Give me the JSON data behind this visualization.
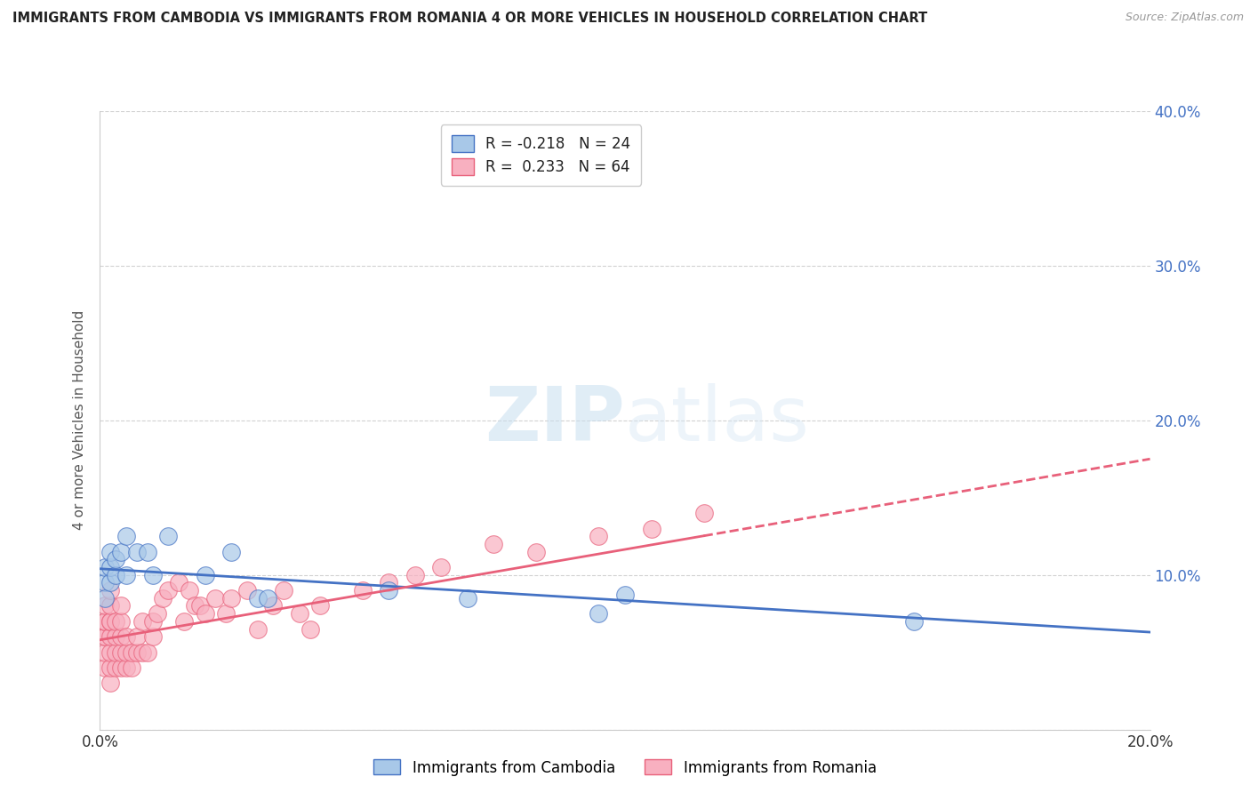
{
  "title": "IMMIGRANTS FROM CAMBODIA VS IMMIGRANTS FROM ROMANIA 4 OR MORE VEHICLES IN HOUSEHOLD CORRELATION CHART",
  "source": "Source: ZipAtlas.com",
  "ylabel": "4 or more Vehicles in Household",
  "xlim": [
    0.0,
    0.2
  ],
  "ylim": [
    0.0,
    0.4
  ],
  "cambodia_color": "#a8c8e8",
  "romania_color": "#f8b0c0",
  "cambodia_line_color": "#4472c4",
  "romania_line_color": "#e8607a",
  "cambodia_R": -0.218,
  "cambodia_N": 24,
  "romania_R": 0.233,
  "romania_N": 64,
  "watermark_zip": "ZIP",
  "watermark_atlas": "atlas",
  "background_color": "#ffffff",
  "grid_color": "#cccccc",
  "legend_label_cambodia": "Immigrants from Cambodia",
  "legend_label_romania": "Immigrants from Romania",
  "cambodia_x": [
    0.001,
    0.001,
    0.001,
    0.002,
    0.002,
    0.002,
    0.003,
    0.003,
    0.004,
    0.005,
    0.005,
    0.007,
    0.009,
    0.01,
    0.013,
    0.02,
    0.025,
    0.03,
    0.032,
    0.055,
    0.07,
    0.095,
    0.1,
    0.155
  ],
  "cambodia_y": [
    0.095,
    0.105,
    0.085,
    0.095,
    0.105,
    0.115,
    0.1,
    0.11,
    0.115,
    0.1,
    0.125,
    0.115,
    0.115,
    0.1,
    0.125,
    0.1,
    0.115,
    0.085,
    0.085,
    0.09,
    0.085,
    0.075,
    0.087,
    0.07
  ],
  "romania_x": [
    0.001,
    0.001,
    0.001,
    0.001,
    0.001,
    0.001,
    0.001,
    0.002,
    0.002,
    0.002,
    0.002,
    0.002,
    0.002,
    0.002,
    0.002,
    0.003,
    0.003,
    0.003,
    0.003,
    0.004,
    0.004,
    0.004,
    0.004,
    0.004,
    0.005,
    0.005,
    0.005,
    0.006,
    0.006,
    0.007,
    0.007,
    0.008,
    0.008,
    0.009,
    0.01,
    0.01,
    0.011,
    0.012,
    0.013,
    0.015,
    0.016,
    0.017,
    0.018,
    0.019,
    0.02,
    0.022,
    0.024,
    0.025,
    0.028,
    0.03,
    0.033,
    0.035,
    0.038,
    0.04,
    0.042,
    0.05,
    0.055,
    0.06,
    0.065,
    0.075,
    0.083,
    0.095,
    0.105,
    0.115
  ],
  "romania_y": [
    0.04,
    0.05,
    0.06,
    0.06,
    0.07,
    0.07,
    0.08,
    0.03,
    0.04,
    0.05,
    0.06,
    0.07,
    0.07,
    0.08,
    0.09,
    0.04,
    0.05,
    0.06,
    0.07,
    0.04,
    0.05,
    0.06,
    0.07,
    0.08,
    0.04,
    0.05,
    0.06,
    0.04,
    0.05,
    0.05,
    0.06,
    0.05,
    0.07,
    0.05,
    0.06,
    0.07,
    0.075,
    0.085,
    0.09,
    0.095,
    0.07,
    0.09,
    0.08,
    0.08,
    0.075,
    0.085,
    0.075,
    0.085,
    0.09,
    0.065,
    0.08,
    0.09,
    0.075,
    0.065,
    0.08,
    0.09,
    0.095,
    0.1,
    0.105,
    0.12,
    0.115,
    0.125,
    0.13,
    0.14
  ]
}
